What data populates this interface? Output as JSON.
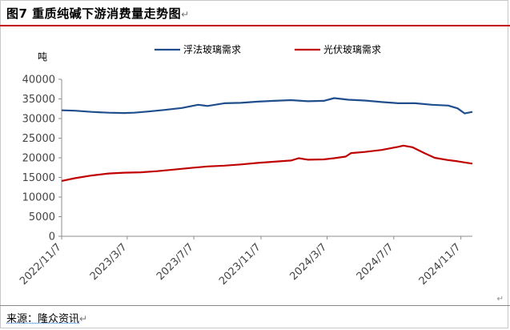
{
  "figure": {
    "title": "图7  重质纯碱下游消费量走势图",
    "paragraph_mark": "↵",
    "source": "来源：隆众资讯"
  },
  "chart_data": {
    "type": "line",
    "title": "",
    "ylabel": "吨",
    "xlabel": "",
    "ylim": [
      0,
      40000
    ],
    "yticks": [
      0,
      5000,
      10000,
      15000,
      20000,
      25000,
      30000,
      35000,
      40000
    ],
    "xtick_labels": [
      "2022/11/7",
      "2023/3/7",
      "2023/7/7",
      "2023/11/7",
      "2024/3/7",
      "2024/7/7",
      "2024/11/7"
    ],
    "xlim": [
      "2022/11/7",
      "2024/11/28"
    ],
    "grid": false,
    "legend_position": "top",
    "series": [
      {
        "name": "浮法玻璃需求",
        "color": "#1f4e8c",
        "points": [
          [
            "2022/11/7",
            32100
          ],
          [
            "2022/12/1",
            32000
          ],
          [
            "2023/1/1",
            31700
          ],
          [
            "2023/2/1",
            31500
          ],
          [
            "2023/3/1",
            31400
          ],
          [
            "2023/3/20",
            31500
          ],
          [
            "2023/4/15",
            31800
          ],
          [
            "2023/5/15",
            32200
          ],
          [
            "2023/6/15",
            32700
          ],
          [
            "2023/7/15",
            33500
          ],
          [
            "2023/8/1",
            33200
          ],
          [
            "2023/9/1",
            33900
          ],
          [
            "2023/10/1",
            34000
          ],
          [
            "2023/11/1",
            34300
          ],
          [
            "2023/12/1",
            34500
          ],
          [
            "2024/1/1",
            34700
          ],
          [
            "2024/2/1",
            34400
          ],
          [
            "2024/3/1",
            34500
          ],
          [
            "2024/3/20",
            35200
          ],
          [
            "2024/4/15",
            34800
          ],
          [
            "2024/5/15",
            34600
          ],
          [
            "2024/6/15",
            34200
          ],
          [
            "2024/7/15",
            33900
          ],
          [
            "2024/8/15",
            33900
          ],
          [
            "2024/9/15",
            33500
          ],
          [
            "2024/10/15",
            33300
          ],
          [
            "2024/11/1",
            32600
          ],
          [
            "2024/11/14",
            31300
          ],
          [
            "2024/11/28",
            31700
          ]
        ]
      },
      {
        "name": "光伏玻璃需求",
        "color": "#c00000",
        "points": [
          [
            "2022/11/7",
            14100
          ],
          [
            "2022/12/1",
            14800
          ],
          [
            "2023/1/1",
            15500
          ],
          [
            "2023/2/1",
            16000
          ],
          [
            "2023/3/1",
            16200
          ],
          [
            "2023/4/1",
            16300
          ],
          [
            "2023/5/1",
            16600
          ],
          [
            "2023/6/1",
            17000
          ],
          [
            "2023/7/1",
            17400
          ],
          [
            "2023/8/1",
            17800
          ],
          [
            "2023/9/1",
            18000
          ],
          [
            "2023/10/1",
            18300
          ],
          [
            "2023/11/1",
            18700
          ],
          [
            "2023/12/1",
            19000
          ],
          [
            "2024/1/1",
            19300
          ],
          [
            "2024/1/15",
            19900
          ],
          [
            "2024/2/1",
            19500
          ],
          [
            "2024/3/1",
            19600
          ],
          [
            "2024/3/20",
            19900
          ],
          [
            "2024/4/10",
            20300
          ],
          [
            "2024/4/20",
            21200
          ],
          [
            "2024/5/15",
            21500
          ],
          [
            "2024/6/15",
            22000
          ],
          [
            "2024/7/15",
            22800
          ],
          [
            "2024/7/25",
            23100
          ],
          [
            "2024/8/10",
            22700
          ],
          [
            "2024/9/1",
            21200
          ],
          [
            "2024/9/20",
            20000
          ],
          [
            "2024/10/15",
            19400
          ],
          [
            "2024/11/1",
            19100
          ],
          [
            "2024/11/28",
            18500
          ]
        ]
      }
    ]
  }
}
